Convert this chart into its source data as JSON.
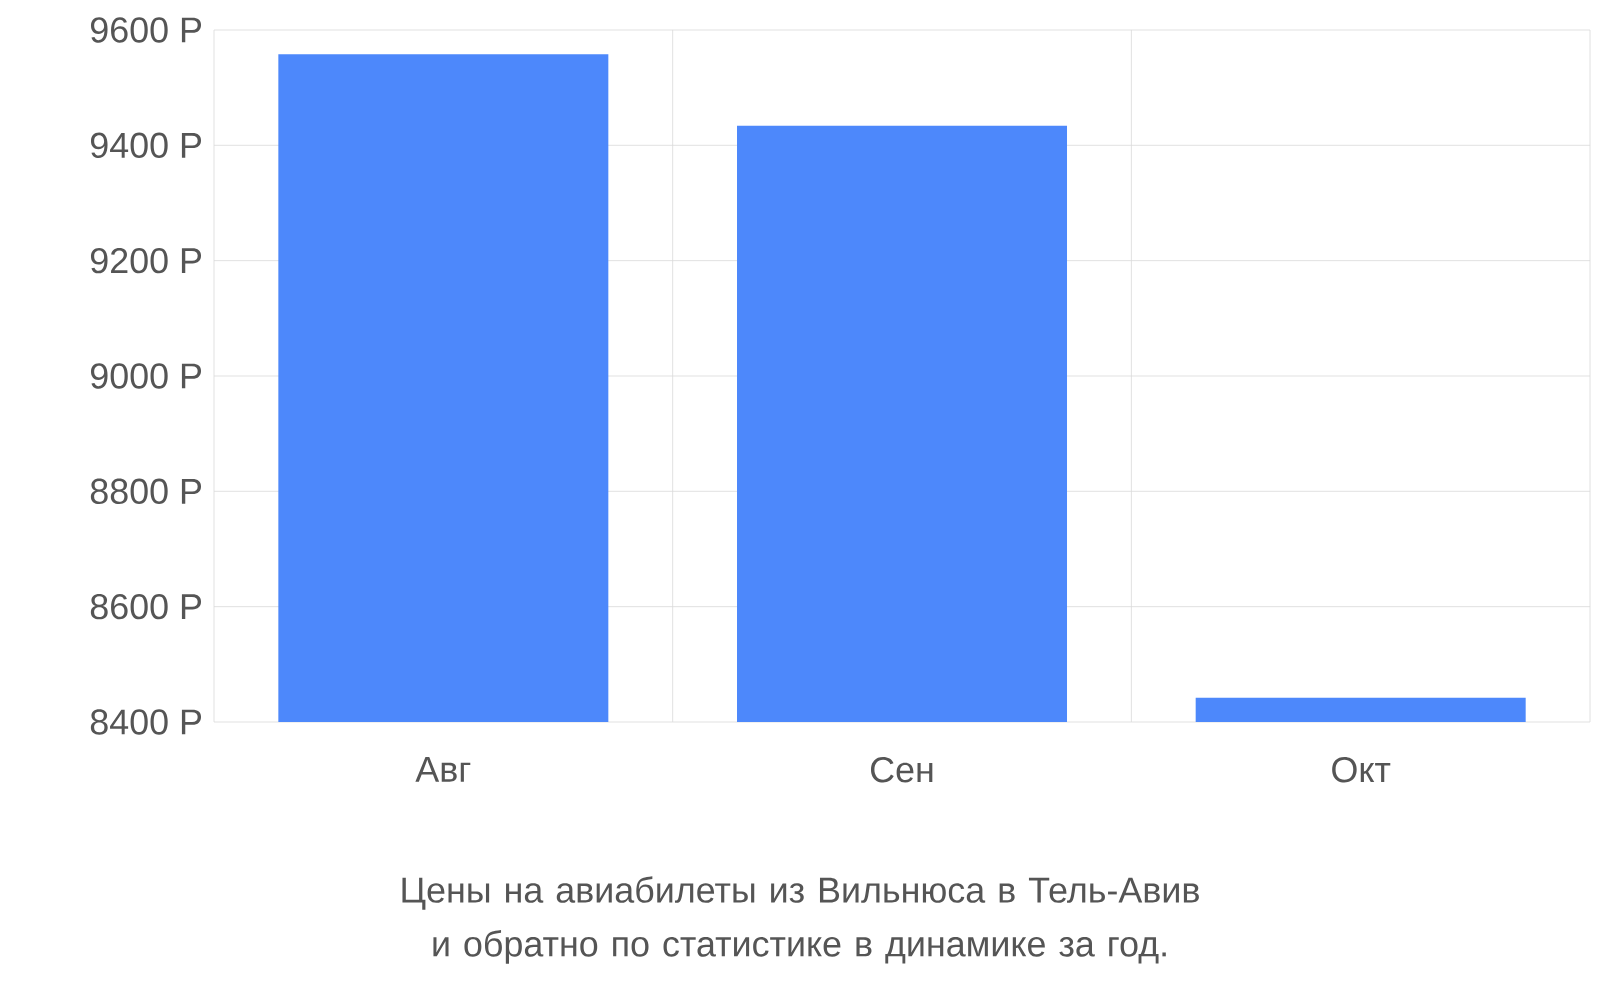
{
  "chart_data": {
    "type": "bar",
    "title": "Цены на авиабилеты из Вильнюса в Тель-Авив и обратно по статистике в динамике за год.",
    "categories": [
      "Авг",
      "Сен",
      "Окт"
    ],
    "values": [
      9558,
      9434,
      8442
    ],
    "color": "#4d88fb",
    "ylim": [
      8400,
      9600
    ],
    "yticks": [
      {
        "value": 8400,
        "label": "8400 Р"
      },
      {
        "value": 8600,
        "label": "8600 Р"
      },
      {
        "value": 8800,
        "label": "8800 Р"
      },
      {
        "value": 9000,
        "label": "9000 Р"
      },
      {
        "value": 9200,
        "label": "9200 Р"
      },
      {
        "value": 9400,
        "label": "9400 Р"
      },
      {
        "value": 9600,
        "label": "9600 Р"
      }
    ],
    "grid": true
  }
}
